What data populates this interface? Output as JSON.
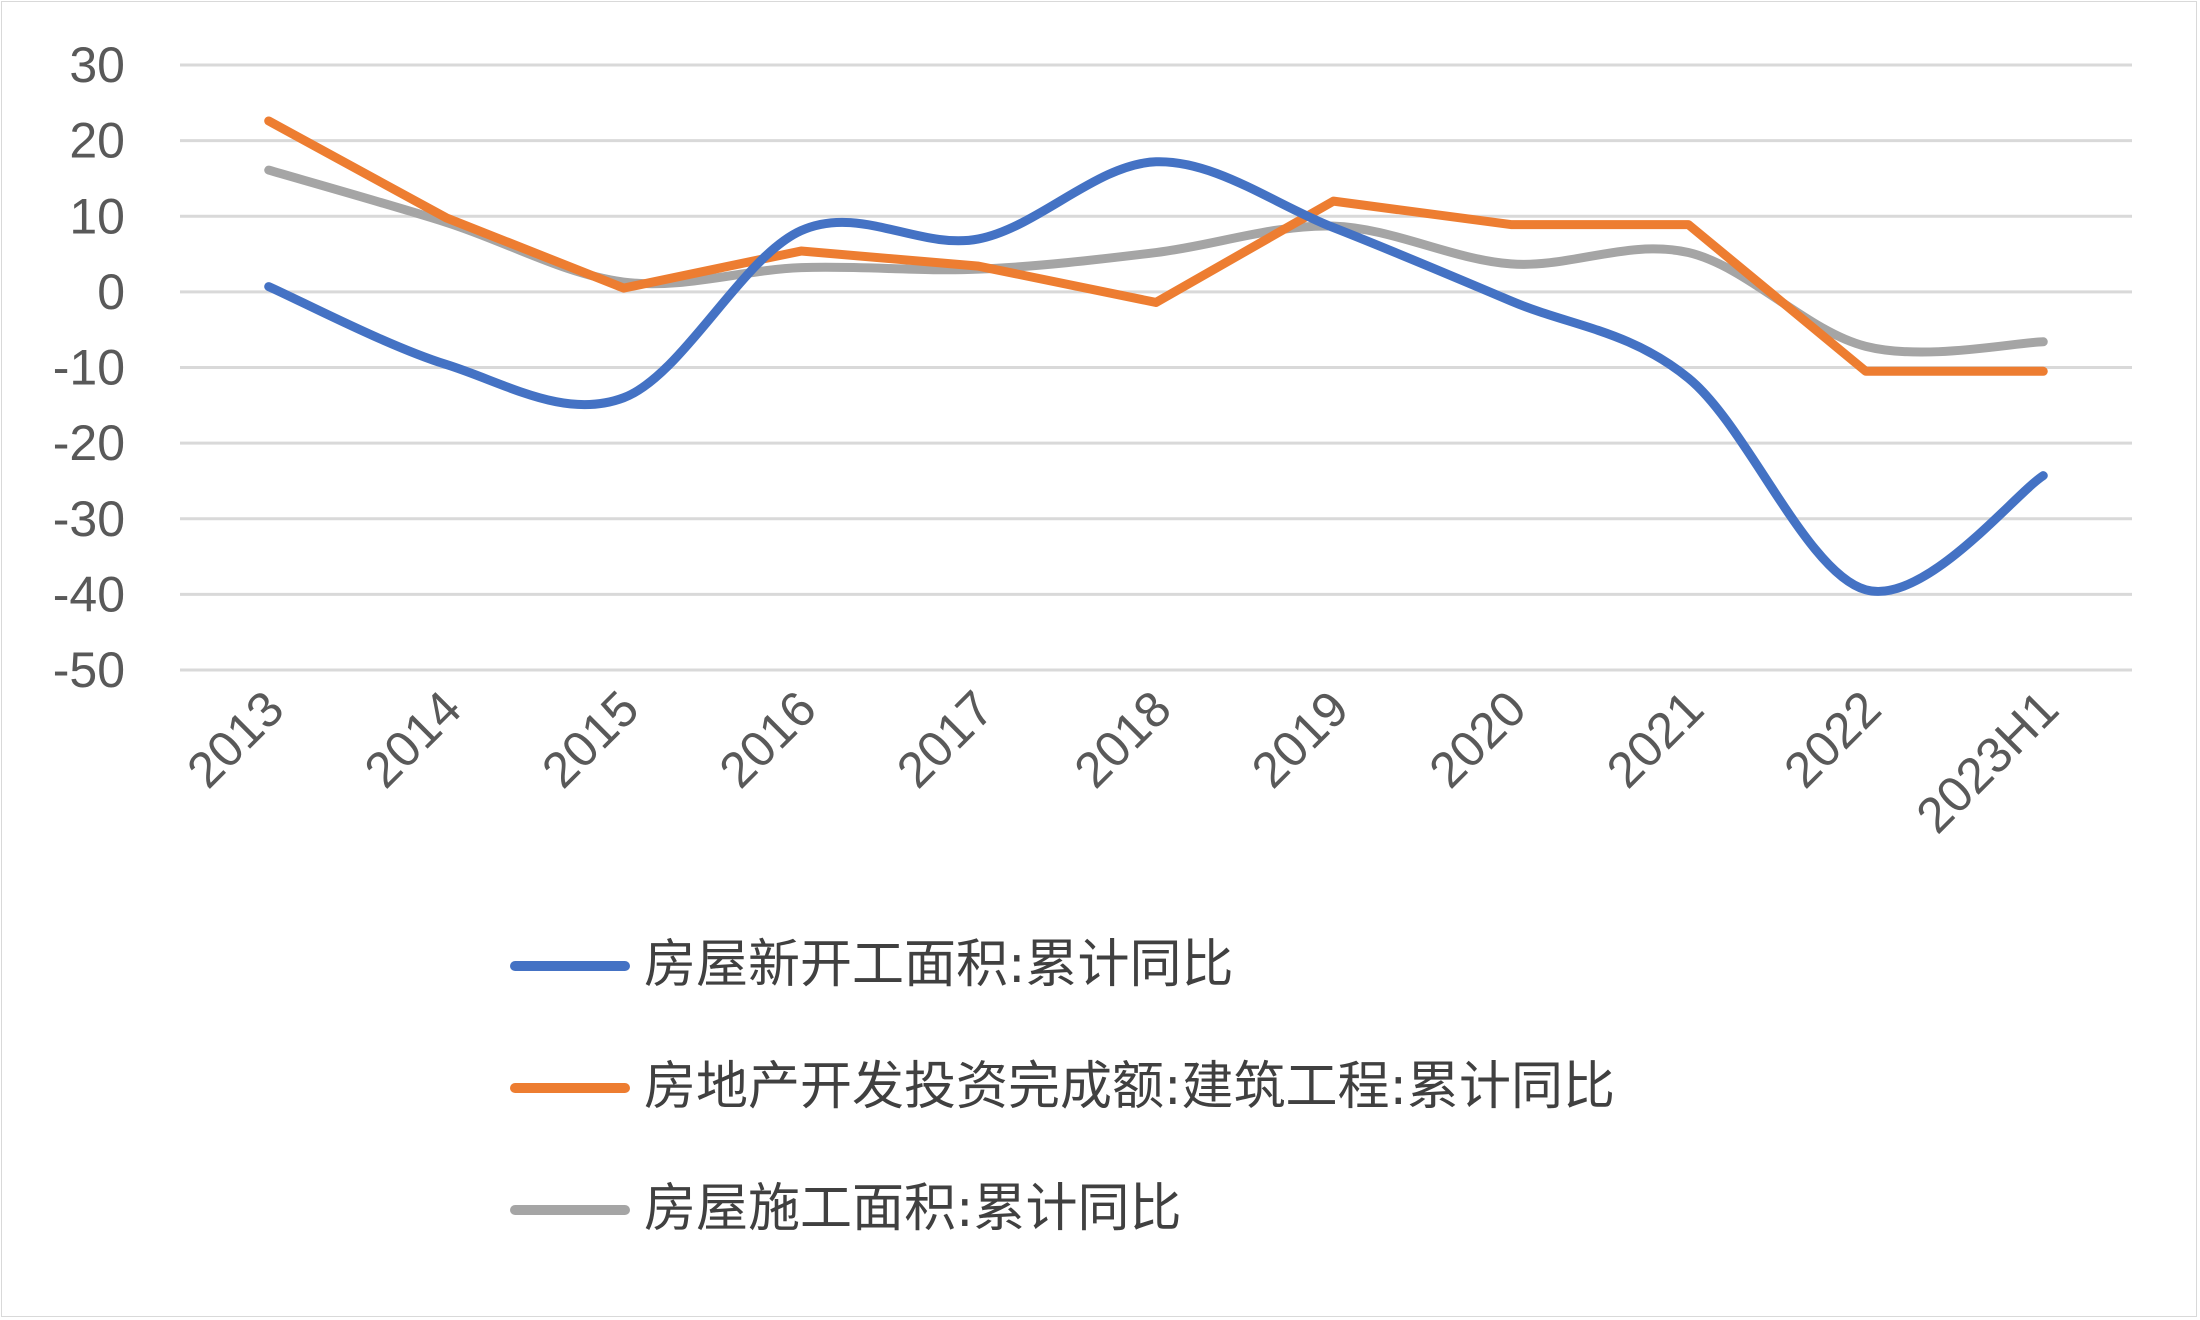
{
  "chart_data": {
    "type": "line",
    "title": "",
    "xlabel": "",
    "ylabel": "",
    "categories": [
      "2013",
      "2014",
      "2015",
      "2016",
      "2017",
      "2018",
      "2019",
      "2020",
      "2021",
      "2022",
      "2023H1"
    ],
    "ylim": [
      -50,
      30
    ],
    "yticks": [
      30,
      20,
      10,
      0,
      -10,
      -20,
      -30,
      -40,
      -50
    ],
    "grid": true,
    "smooth": true,
    "legend_position": "bottom",
    "series": [
      {
        "name": "房屋新开工面积:累计同比",
        "color": "#4472C4",
        "values": [
          0.7,
          -9.6,
          -14.0,
          8.1,
          7.0,
          17.2,
          8.5,
          -1.2,
          -11.4,
          -39.4,
          -24.3
        ]
      },
      {
        "name": "房地产开发投资完成额:建筑工程:累计同比",
        "color": "#ED7D31",
        "values": [
          22.6,
          9.8,
          0.5,
          5.4,
          3.4,
          -1.4,
          12.0,
          8.9,
          8.9,
          -10.5,
          -10.5
        ]
      },
      {
        "name": "房屋施工面积:累计同比",
        "color": "#A5A5A5",
        "values": [
          16.1,
          9.2,
          1.3,
          3.2,
          3.0,
          5.2,
          8.7,
          3.7,
          5.2,
          -7.2,
          -6.6
        ]
      }
    ]
  }
}
